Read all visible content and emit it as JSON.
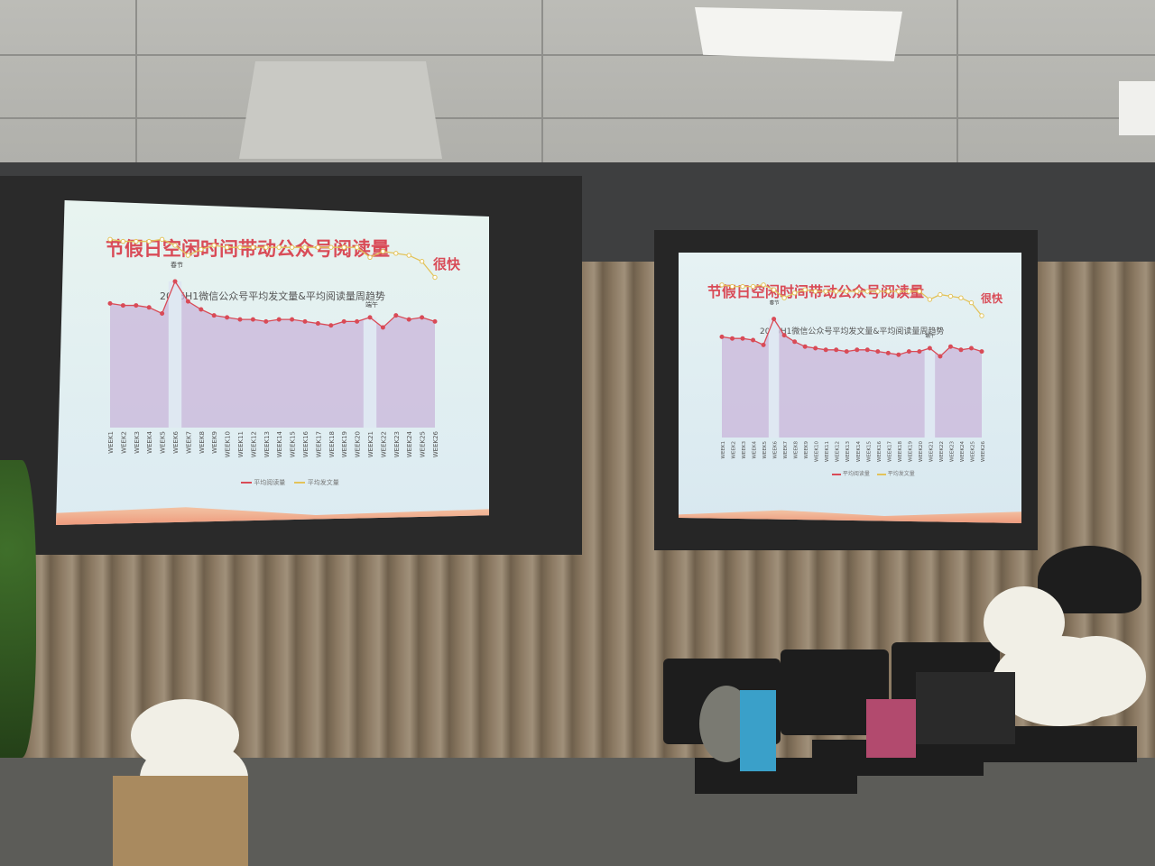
{
  "slide": {
    "title": "节假日空闲时间带动公众号阅读量",
    "logo": "很快",
    "chart_title": "2016H1微信公众号平均发文量&平均阅读量周趋势",
    "legend_read": "平均阅读量",
    "legend_post": "平均发文量",
    "annotation_spring": "春节",
    "annotation_dragon": "端午"
  },
  "colors": {
    "title": "#d94b57",
    "line_read": "#d94b57",
    "line_post": "#e3c35a",
    "area_read": "#c9b6d9"
  },
  "chart_data": {
    "type": "line",
    "title": "2016H1微信公众号平均发文量&平均阅读量周趋势",
    "categories": [
      "WEEK1",
      "WEEK2",
      "WEEK3",
      "WEEK4",
      "WEEK5",
      "WEEK6",
      "WEEK7",
      "WEEK8",
      "WEEK9",
      "WEEK10",
      "WEEK11",
      "WEEK12",
      "WEEK13",
      "WEEK14",
      "WEEK15",
      "WEEK16",
      "WEEK17",
      "WEEK18",
      "WEEK19",
      "WEEK20",
      "WEEK21",
      "WEEK22",
      "WEEK23",
      "WEEK24",
      "WEEK25",
      "WEEK26"
    ],
    "series": [
      {
        "name": "平均阅读量",
        "values": [
          62,
          61,
          61,
          60,
          57,
          73,
          63,
          59,
          56,
          55,
          54,
          54,
          53,
          54,
          54,
          53,
          52,
          51,
          53,
          53,
          55,
          50,
          56,
          54,
          55,
          53
        ]
      },
      {
        "name": "平均发文量",
        "values": [
          94,
          93,
          93,
          93,
          94,
          91,
          86,
          89,
          91,
          90,
          90,
          90,
          90,
          90,
          90,
          90,
          90,
          90,
          90,
          90,
          85,
          88,
          87,
          86,
          83,
          75
        ]
      }
    ],
    "ylim": [
      0,
      100
    ],
    "legend": "bottom"
  }
}
